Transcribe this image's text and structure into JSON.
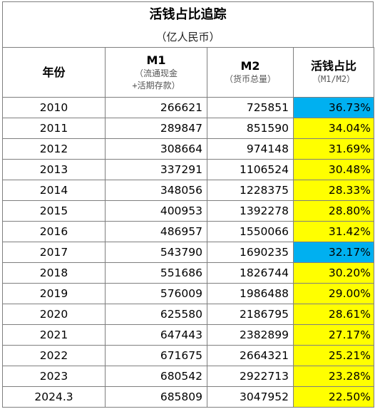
{
  "title": "活钱占比追踪",
  "subtitle": "（亿人民币）",
  "headers": {
    "year": "年份",
    "m1": "M1",
    "m1_sub1": "（流通现金",
    "m1_sub2": "+活期存款）",
    "m2": "M2",
    "m2_sub": "（货币总量）",
    "ratio": "活钱占比",
    "ratio_sub": "（M1/M2）"
  },
  "colors": {
    "highlight_yellow": "#ffff00",
    "highlight_blue": "#00b0f0",
    "border": "#7f7f7f"
  },
  "rows": [
    {
      "year": "2010",
      "m1": "266621",
      "m2": "725851",
      "ratio": "36.73%",
      "highlight": "blue"
    },
    {
      "year": "2011",
      "m1": "289847",
      "m2": "851590",
      "ratio": "34.04%",
      "highlight": "yellow"
    },
    {
      "year": "2012",
      "m1": "308664",
      "m2": "974148",
      "ratio": "31.69%",
      "highlight": "yellow"
    },
    {
      "year": "2013",
      "m1": "337291",
      "m2": "1106524",
      "ratio": "30.48%",
      "highlight": "yellow"
    },
    {
      "year": "2014",
      "m1": "348056",
      "m2": "1228375",
      "ratio": "28.33%",
      "highlight": "yellow"
    },
    {
      "year": "2015",
      "m1": "400953",
      "m2": "1392278",
      "ratio": "28.80%",
      "highlight": "yellow"
    },
    {
      "year": "2016",
      "m1": "486957",
      "m2": "1550066",
      "ratio": "31.42%",
      "highlight": "yellow"
    },
    {
      "year": "2017",
      "m1": "543790",
      "m2": "1690235",
      "ratio": "32.17%",
      "highlight": "blue"
    },
    {
      "year": "2018",
      "m1": "551686",
      "m2": "1826744",
      "ratio": "30.20%",
      "highlight": "yellow"
    },
    {
      "year": "2019",
      "m1": "576009",
      "m2": "1986488",
      "ratio": "29.00%",
      "highlight": "yellow"
    },
    {
      "year": "2020",
      "m1": "625580",
      "m2": "2186795",
      "ratio": "28.61%",
      "highlight": "yellow"
    },
    {
      "year": "2021",
      "m1": "647443",
      "m2": "2382899",
      "ratio": "27.17%",
      "highlight": "yellow"
    },
    {
      "year": "2022",
      "m1": "671675",
      "m2": "2664321",
      "ratio": "25.21%",
      "highlight": "yellow"
    },
    {
      "year": "2023",
      "m1": "680542",
      "m2": "2922713",
      "ratio": "23.28%",
      "highlight": "yellow"
    },
    {
      "year": "2024.3",
      "m1": "685809",
      "m2": "3047952",
      "ratio": "22.50%",
      "highlight": "yellow"
    }
  ]
}
